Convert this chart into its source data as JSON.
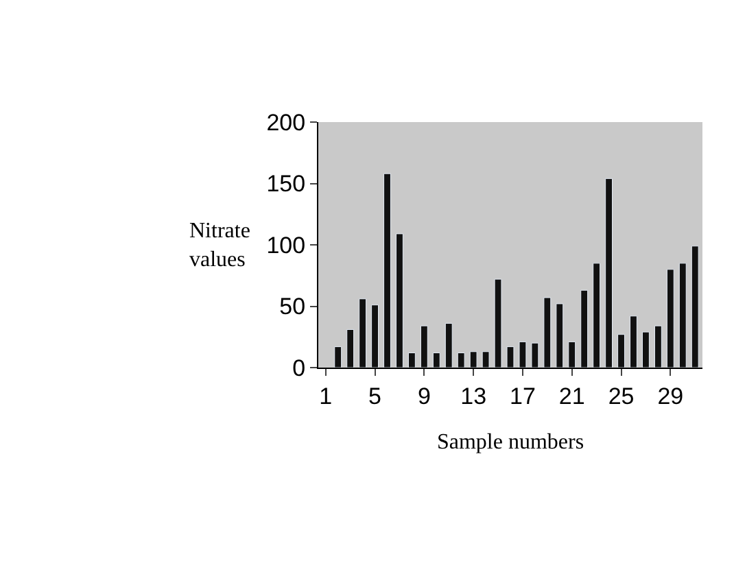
{
  "chart_data": {
    "type": "bar",
    "xlabel": "Sample numbers",
    "ylabel": "Nitrate values",
    "categories": [
      "1",
      null,
      null,
      null,
      "5",
      null,
      null,
      null,
      "9",
      null,
      null,
      null,
      "13",
      null,
      null,
      null,
      "17",
      null,
      null,
      null,
      "21",
      null,
      null,
      null,
      "25",
      null,
      null,
      null,
      "29",
      null,
      null
    ],
    "values": [
      null,
      17,
      31,
      56,
      51,
      158,
      109,
      12,
      34,
      12,
      36,
      12,
      13,
      13,
      72,
      17,
      21,
      20,
      57,
      52,
      21,
      63,
      85,
      154,
      27,
      42,
      29,
      34,
      80,
      85,
      99
    ],
    "color": "#111111",
    "ylim": [
      0,
      200
    ],
    "yticks": [
      0,
      50,
      100,
      150,
      200
    ],
    "grid": false
  }
}
